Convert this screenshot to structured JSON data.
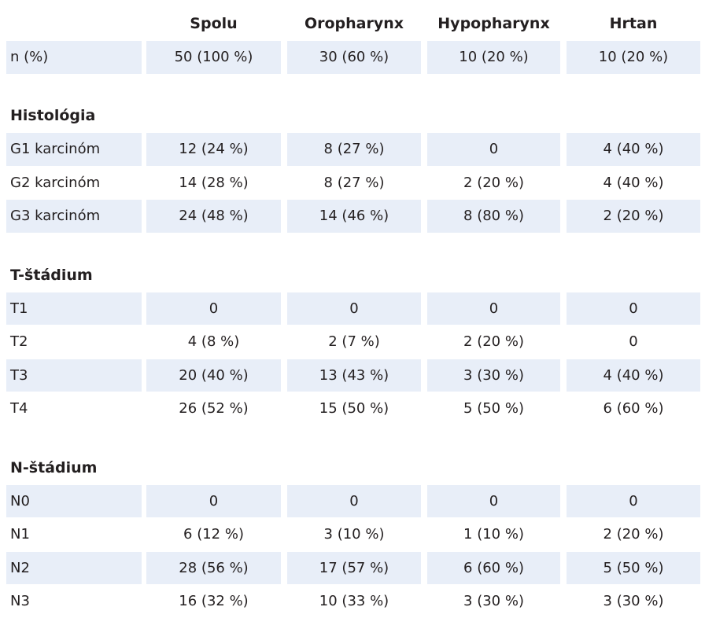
{
  "table": {
    "columns": [
      "Spolu",
      "Oropharynx",
      "Hypopharynx",
      "Hrtan"
    ],
    "n_row": {
      "label": "n (%)",
      "cells": [
        "50 (100 %)",
        "30 (60 %)",
        "10 (20 %)",
        "10 (20 %)"
      ]
    },
    "sections": [
      {
        "title": "Histológia",
        "rows": [
          {
            "label": "G1 karcinóm",
            "cells": [
              "12 (24 %)",
              "8 (27 %)",
              "0",
              "4 (40 %)"
            ]
          },
          {
            "label": "G2 karcinóm",
            "cells": [
              "14 (28 %)",
              "8 (27 %)",
              "2 (20 %)",
              "4 (40 %)"
            ]
          },
          {
            "label": "G3 karcinóm",
            "cells": [
              "24 (48 %)",
              "14 (46 %)",
              "8 (80 %)",
              "2 (20 %)"
            ]
          }
        ]
      },
      {
        "title": "T-štádium",
        "rows": [
          {
            "label": "T1",
            "cells": [
              "0",
              "0",
              "0",
              "0"
            ]
          },
          {
            "label": "T2",
            "cells": [
              "4 (8 %)",
              "2 (7 %)",
              "2 (20 %)",
              "0"
            ]
          },
          {
            "label": "T3",
            "cells": [
              "20 (40 %)",
              "13 (43 %)",
              "3 (30 %)",
              "4 (40 %)"
            ]
          },
          {
            "label": "T4",
            "cells": [
              "26 (52 %)",
              "15 (50 %)",
              "5 (50 %)",
              "6 (60 %)"
            ]
          }
        ]
      },
      {
        "title": "N-štádium",
        "rows": [
          {
            "label": "N0",
            "cells": [
              "0",
              "0",
              "0",
              "0"
            ]
          },
          {
            "label": "N1",
            "cells": [
              "6 (12 %)",
              "3 (10 %)",
              "1 (10 %)",
              "2 (20 %)"
            ]
          },
          {
            "label": "N2",
            "cells": [
              "28 (56 %)",
              "17 (57 %)",
              "6 (60 %)",
              "5 (50 %)"
            ]
          },
          {
            "label": "N3",
            "cells": [
              "16 (32 %)",
              "10 (33 %)",
              "3 (30 %)",
              "3 (30 %)"
            ]
          }
        ]
      }
    ]
  }
}
